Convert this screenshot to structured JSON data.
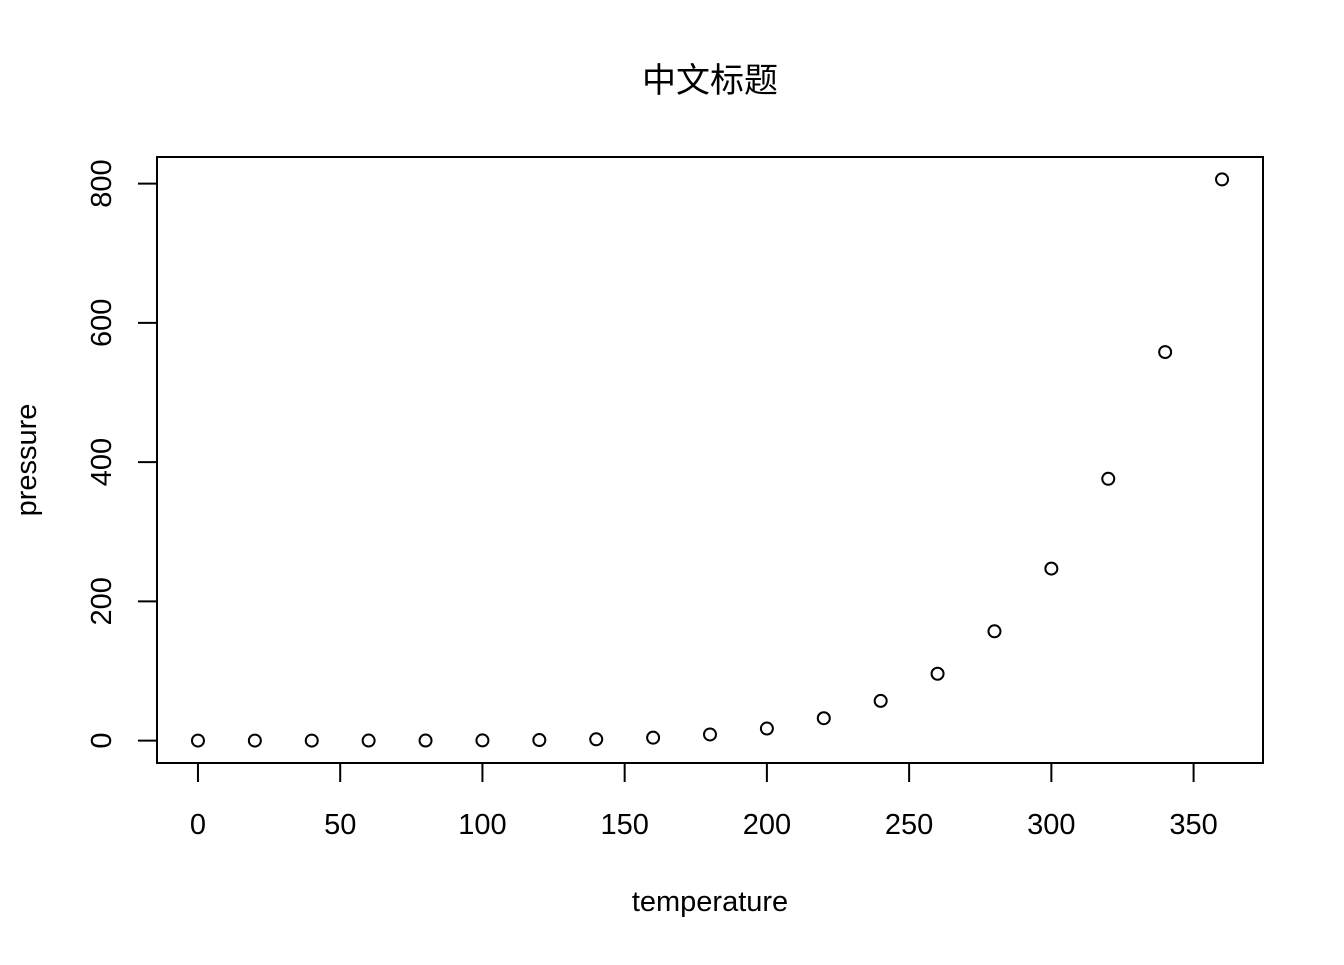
{
  "chart_data": {
    "type": "scatter",
    "title": "中文标题",
    "xlabel": "temperature",
    "ylabel": "pressure",
    "xlim": [
      -14.4,
      374.4
    ],
    "ylim": [
      -32.2,
      838.2
    ],
    "xticks": [
      0,
      50,
      100,
      150,
      200,
      250,
      300,
      350
    ],
    "yticks": [
      0,
      200,
      400,
      600,
      800
    ],
    "xtick_labels": [
      "0",
      "50",
      "100",
      "150",
      "200",
      "250",
      "300",
      "350"
    ],
    "ytick_labels": [
      "0",
      "200",
      "400",
      "600",
      "800"
    ],
    "grid": false,
    "marker": "open-circle",
    "series": [
      {
        "x": [
          0,
          20,
          40,
          60,
          80,
          100,
          120,
          140,
          160,
          180,
          200,
          220,
          240,
          260,
          280,
          300,
          320,
          340,
          360
        ],
        "y": [
          0.0002,
          0.0012,
          0.006,
          0.03,
          0.09,
          0.27,
          0.75,
          1.85,
          4.2,
          8.8,
          17.3,
          32.1,
          57.0,
          96.0,
          157.0,
          247.0,
          376.0,
          558.0,
          806.0
        ]
      }
    ],
    "colors": {
      "marker_stroke": "#000000",
      "axis": "#000000",
      "background": "#ffffff"
    }
  }
}
